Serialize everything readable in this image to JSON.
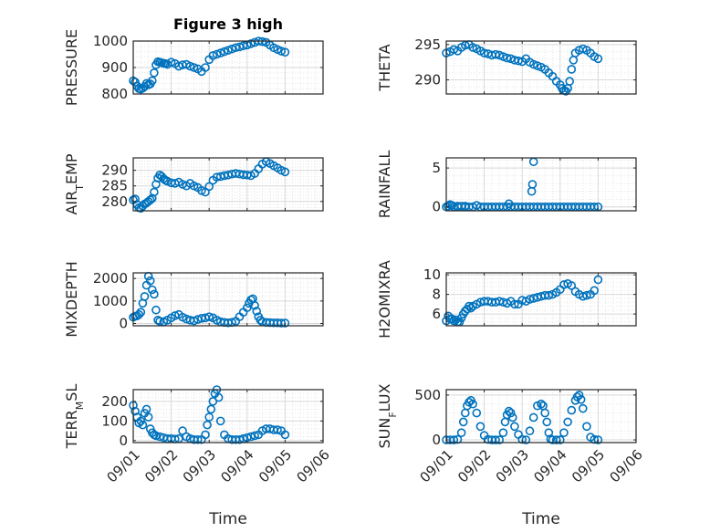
{
  "title": "Figure 3 high",
  "x_label": "Time",
  "x_tick_labels": [
    "09/01",
    "09/02",
    "09/03",
    "09/04",
    "09/05",
    "09/06"
  ],
  "colors": {
    "marker": "#0072BD",
    "grid": "#D9D9D9",
    "axis": "#262626"
  },
  "chart_data": [
    {
      "type": "scatter",
      "ylabel": "PRESSURE",
      "ylim": [
        800,
        1000
      ],
      "yticks": [
        800,
        900,
        1000
      ],
      "title": "Figure 3 high",
      "xlabel": "",
      "x": [
        0.0,
        0.05,
        0.1,
        0.15,
        0.2,
        0.25,
        0.3,
        0.35,
        0.4,
        0.45,
        0.5,
        0.55,
        0.6,
        0.65,
        0.7,
        0.75,
        0.8,
        0.85,
        0.9,
        1.0,
        1.1,
        1.2,
        1.3,
        1.4,
        1.5,
        1.6,
        1.7,
        1.8,
        1.9,
        2.0,
        2.1,
        2.2,
        2.3,
        2.4,
        2.5,
        2.6,
        2.7,
        2.8,
        2.9,
        3.0,
        3.1,
        3.2,
        3.3,
        3.4,
        3.5,
        3.6,
        3.7,
        3.8,
        3.9,
        4.0
      ],
      "y": [
        850,
        845,
        830,
        820,
        818,
        822,
        828,
        840,
        835,
        838,
        850,
        880,
        910,
        922,
        920,
        918,
        916,
        915,
        912,
        920,
        915,
        905,
        910,
        912,
        905,
        900,
        895,
        885,
        900,
        930,
        945,
        950,
        955,
        960,
        965,
        970,
        975,
        978,
        982,
        985,
        990,
        995,
        1000,
        998,
        995,
        985,
        975,
        968,
        962,
        958
      ]
    },
    {
      "type": "scatter",
      "ylabel": "THETA",
      "ylim": [
        288,
        295.5
      ],
      "yticks": [
        290,
        295
      ],
      "title": "",
      "xlabel": "",
      "x": [
        0.0,
        0.1,
        0.2,
        0.3,
        0.4,
        0.5,
        0.6,
        0.7,
        0.8,
        0.9,
        1.0,
        1.1,
        1.2,
        1.3,
        1.4,
        1.5,
        1.6,
        1.7,
        1.8,
        1.9,
        2.0,
        2.1,
        2.2,
        2.3,
        2.4,
        2.5,
        2.6,
        2.7,
        2.8,
        2.9,
        3.0,
        3.05,
        3.1,
        3.15,
        3.2,
        3.25,
        3.3,
        3.35,
        3.4,
        3.5,
        3.6,
        3.7,
        3.8,
        3.9,
        4.0
      ],
      "y": [
        293.8,
        294.0,
        294.3,
        294.1,
        294.6,
        294.9,
        295.0,
        294.6,
        294.4,
        294.1,
        293.8,
        293.7,
        293.5,
        293.6,
        293.5,
        293.3,
        293.1,
        293.0,
        292.8,
        292.7,
        292.6,
        293.0,
        292.5,
        292.2,
        292.0,
        291.8,
        291.5,
        291.0,
        290.5,
        289.8,
        289.3,
        288.8,
        288.5,
        288.4,
        288.8,
        289.8,
        291.5,
        292.8,
        293.8,
        294.2,
        294.4,
        294.2,
        293.8,
        293.3,
        293.0
      ]
    },
    {
      "type": "scatter",
      "ylabel": "AIR_TEMP",
      "ylim": [
        277,
        294
      ],
      "yticks": [
        280,
        285,
        290
      ],
      "title": "",
      "xlabel": "",
      "x": [
        0.0,
        0.05,
        0.1,
        0.15,
        0.2,
        0.25,
        0.3,
        0.35,
        0.4,
        0.45,
        0.5,
        0.55,
        0.6,
        0.65,
        0.7,
        0.75,
        0.8,
        0.85,
        0.9,
        1.0,
        1.1,
        1.2,
        1.3,
        1.4,
        1.5,
        1.6,
        1.7,
        1.8,
        1.9,
        2.0,
        2.1,
        2.2,
        2.3,
        2.4,
        2.5,
        2.6,
        2.7,
        2.8,
        2.9,
        3.0,
        3.1,
        3.2,
        3.3,
        3.4,
        3.5,
        3.6,
        3.7,
        3.8,
        3.9,
        4.0
      ],
      "y": [
        280.5,
        280.8,
        279.0,
        278.0,
        277.8,
        278.5,
        279.2,
        279.5,
        280.0,
        280.5,
        281.0,
        283.0,
        285.5,
        287.5,
        288.5,
        288.0,
        287.3,
        286.8,
        286.5,
        286.0,
        285.8,
        286.2,
        285.5,
        285.0,
        285.8,
        285.0,
        284.5,
        283.5,
        283.0,
        284.8,
        286.8,
        287.8,
        288.0,
        288.3,
        288.5,
        288.8,
        289.0,
        288.8,
        288.6,
        288.5,
        288.3,
        289.0,
        290.5,
        292.0,
        292.8,
        292.2,
        291.5,
        290.8,
        290.0,
        289.5
      ]
    },
    {
      "type": "scatter",
      "ylabel": "RAINFALL",
      "ylim": [
        -0.5,
        6.3
      ],
      "yticks": [
        0,
        5
      ],
      "title": "",
      "xlabel": "",
      "x": [
        0.0,
        0.05,
        0.1,
        0.15,
        0.2,
        0.3,
        0.4,
        0.5,
        0.6,
        0.7,
        0.8,
        0.9,
        1.0,
        1.1,
        1.2,
        1.3,
        1.4,
        1.5,
        1.6,
        1.7,
        1.8,
        1.9,
        2.0,
        2.1,
        2.2,
        2.3,
        2.4,
        2.5,
        2.6,
        2.7,
        2.8,
        2.9,
        3.0,
        3.1,
        3.2,
        3.3,
        3.4,
        3.5,
        3.6,
        3.7,
        3.8,
        3.9,
        4.0,
        0.3,
        0.5,
        1.65,
        2.25,
        2.27,
        2.3
      ],
      "y": [
        0,
        0.1,
        0.3,
        0.2,
        0,
        0,
        0.1,
        0,
        0,
        0,
        0.2,
        0,
        0,
        0,
        0,
        0,
        0,
        0,
        0,
        0,
        0,
        0,
        0,
        0,
        0,
        0,
        0,
        0,
        0,
        0,
        0,
        0,
        0,
        0,
        0,
        0,
        0,
        0,
        0,
        0,
        0,
        0,
        0,
        0.1,
        0.1,
        0.4,
        2.0,
        2.9,
        5.8
      ]
    },
    {
      "type": "scatter",
      "ylabel": "MIXDEPTH",
      "ylim": [
        -100,
        2250
      ],
      "yticks": [
        0,
        1000,
        2000
      ],
      "title": "",
      "xlabel": "",
      "x": [
        0.0,
        0.05,
        0.1,
        0.15,
        0.2,
        0.25,
        0.3,
        0.35,
        0.4,
        0.45,
        0.5,
        0.55,
        0.6,
        0.65,
        0.7,
        0.8,
        0.9,
        1.0,
        1.1,
        1.2,
        1.3,
        1.4,
        1.5,
        1.6,
        1.7,
        1.8,
        1.9,
        2.0,
        2.1,
        2.2,
        2.3,
        2.4,
        2.5,
        2.6,
        2.7,
        2.8,
        2.9,
        3.0,
        3.05,
        3.1,
        3.15,
        3.2,
        3.25,
        3.3,
        3.35,
        3.4,
        3.5,
        3.6,
        3.7,
        3.8,
        3.9,
        4.0
      ],
      "y": [
        280,
        320,
        340,
        400,
        500,
        900,
        1200,
        1700,
        2100,
        1900,
        1500,
        1300,
        600,
        150,
        100,
        80,
        150,
        250,
        350,
        400,
        280,
        200,
        150,
        120,
        180,
        230,
        250,
        300,
        250,
        150,
        80,
        50,
        30,
        50,
        100,
        300,
        500,
        700,
        900,
        1050,
        1100,
        800,
        550,
        300,
        150,
        80,
        50,
        40,
        30,
        30,
        20,
        20
      ]
    },
    {
      "type": "scatter",
      "ylabel": "H2OMIXRA",
      "ylim": [
        4.8,
        10.2
      ],
      "yticks": [
        6,
        8,
        10
      ],
      "title": "",
      "xlabel": "",
      "x": [
        0.0,
        0.05,
        0.1,
        0.15,
        0.2,
        0.25,
        0.3,
        0.35,
        0.4,
        0.45,
        0.5,
        0.55,
        0.6,
        0.65,
        0.7,
        0.8,
        0.9,
        1.0,
        1.1,
        1.2,
        1.3,
        1.4,
        1.5,
        1.6,
        1.7,
        1.8,
        1.9,
        2.0,
        2.1,
        2.2,
        2.3,
        2.4,
        2.5,
        2.6,
        2.7,
        2.8,
        2.9,
        3.0,
        3.1,
        3.2,
        3.3,
        3.4,
        3.5,
        3.6,
        3.7,
        3.8,
        3.9,
        4.0
      ],
      "y": [
        5.3,
        5.8,
        5.5,
        5.5,
        5.3,
        5.4,
        5.2,
        5.2,
        5.6,
        6.0,
        6.3,
        6.5,
        6.8,
        6.6,
        6.8,
        7.0,
        7.2,
        7.3,
        7.3,
        7.2,
        7.2,
        7.3,
        7.2,
        7.1,
        7.3,
        7.0,
        7.0,
        7.4,
        7.3,
        7.5,
        7.6,
        7.7,
        7.8,
        7.9,
        7.9,
        8.0,
        8.2,
        8.5,
        9.0,
        9.1,
        8.9,
        8.3,
        8.0,
        7.8,
        7.9,
        8.0,
        8.4,
        9.5
      ]
    },
    {
      "type": "scatter",
      "ylabel": "TERR_MSL",
      "ylim": [
        -10,
        260
      ],
      "yticks": [
        0,
        100,
        200
      ],
      "title": "",
      "xlabel": "Time",
      "x": [
        0.0,
        0.05,
        0.1,
        0.15,
        0.2,
        0.25,
        0.3,
        0.35,
        0.4,
        0.45,
        0.5,
        0.55,
        0.6,
        0.7,
        0.8,
        0.9,
        1.0,
        1.1,
        1.2,
        1.3,
        1.4,
        1.5,
        1.6,
        1.7,
        1.8,
        1.9,
        1.95,
        2.0,
        2.05,
        2.1,
        2.15,
        2.2,
        2.25,
        2.3,
        2.4,
        2.5,
        2.6,
        2.7,
        2.8,
        2.9,
        3.0,
        3.1,
        3.2,
        3.3,
        3.4,
        3.5,
        3.6,
        3.7,
        3.8,
        3.9,
        4.0
      ],
      "y": [
        180,
        150,
        120,
        90,
        100,
        80,
        140,
        160,
        120,
        60,
        40,
        30,
        25,
        20,
        15,
        10,
        10,
        8,
        10,
        50,
        20,
        10,
        5,
        5,
        5,
        30,
        80,
        120,
        160,
        200,
        240,
        260,
        220,
        100,
        30,
        10,
        5,
        5,
        5,
        10,
        15,
        20,
        25,
        30,
        50,
        60,
        60,
        55,
        55,
        50,
        30
      ]
    },
    {
      "type": "scatter",
      "ylabel": "SUN_FLUX",
      "ylim": [
        -30,
        560
      ],
      "yticks": [
        0,
        500
      ],
      "title": "",
      "xlabel": "Time",
      "x": [
        0.0,
        0.1,
        0.2,
        0.3,
        0.4,
        0.45,
        0.5,
        0.55,
        0.6,
        0.65,
        0.7,
        0.8,
        0.9,
        1.0,
        1.1,
        1.2,
        1.3,
        1.4,
        1.5,
        1.55,
        1.6,
        1.65,
        1.7,
        1.75,
        1.8,
        1.9,
        2.0,
        2.1,
        2.2,
        2.3,
        2.4,
        2.5,
        2.55,
        2.6,
        2.65,
        2.7,
        2.75,
        2.8,
        2.9,
        3.0,
        3.1,
        3.2,
        3.3,
        3.4,
        3.45,
        3.5,
        3.55,
        3.6,
        3.7,
        3.8,
        3.9,
        4.0
      ],
      "y": [
        0,
        0,
        0,
        5,
        80,
        200,
        300,
        380,
        420,
        440,
        400,
        300,
        150,
        50,
        5,
        0,
        0,
        0,
        80,
        200,
        280,
        320,
        300,
        250,
        150,
        60,
        5,
        0,
        100,
        250,
        380,
        400,
        380,
        300,
        200,
        80,
        10,
        0,
        0,
        0,
        80,
        200,
        330,
        440,
        480,
        500,
        450,
        350,
        150,
        30,
        5,
        0
      ]
    }
  ]
}
